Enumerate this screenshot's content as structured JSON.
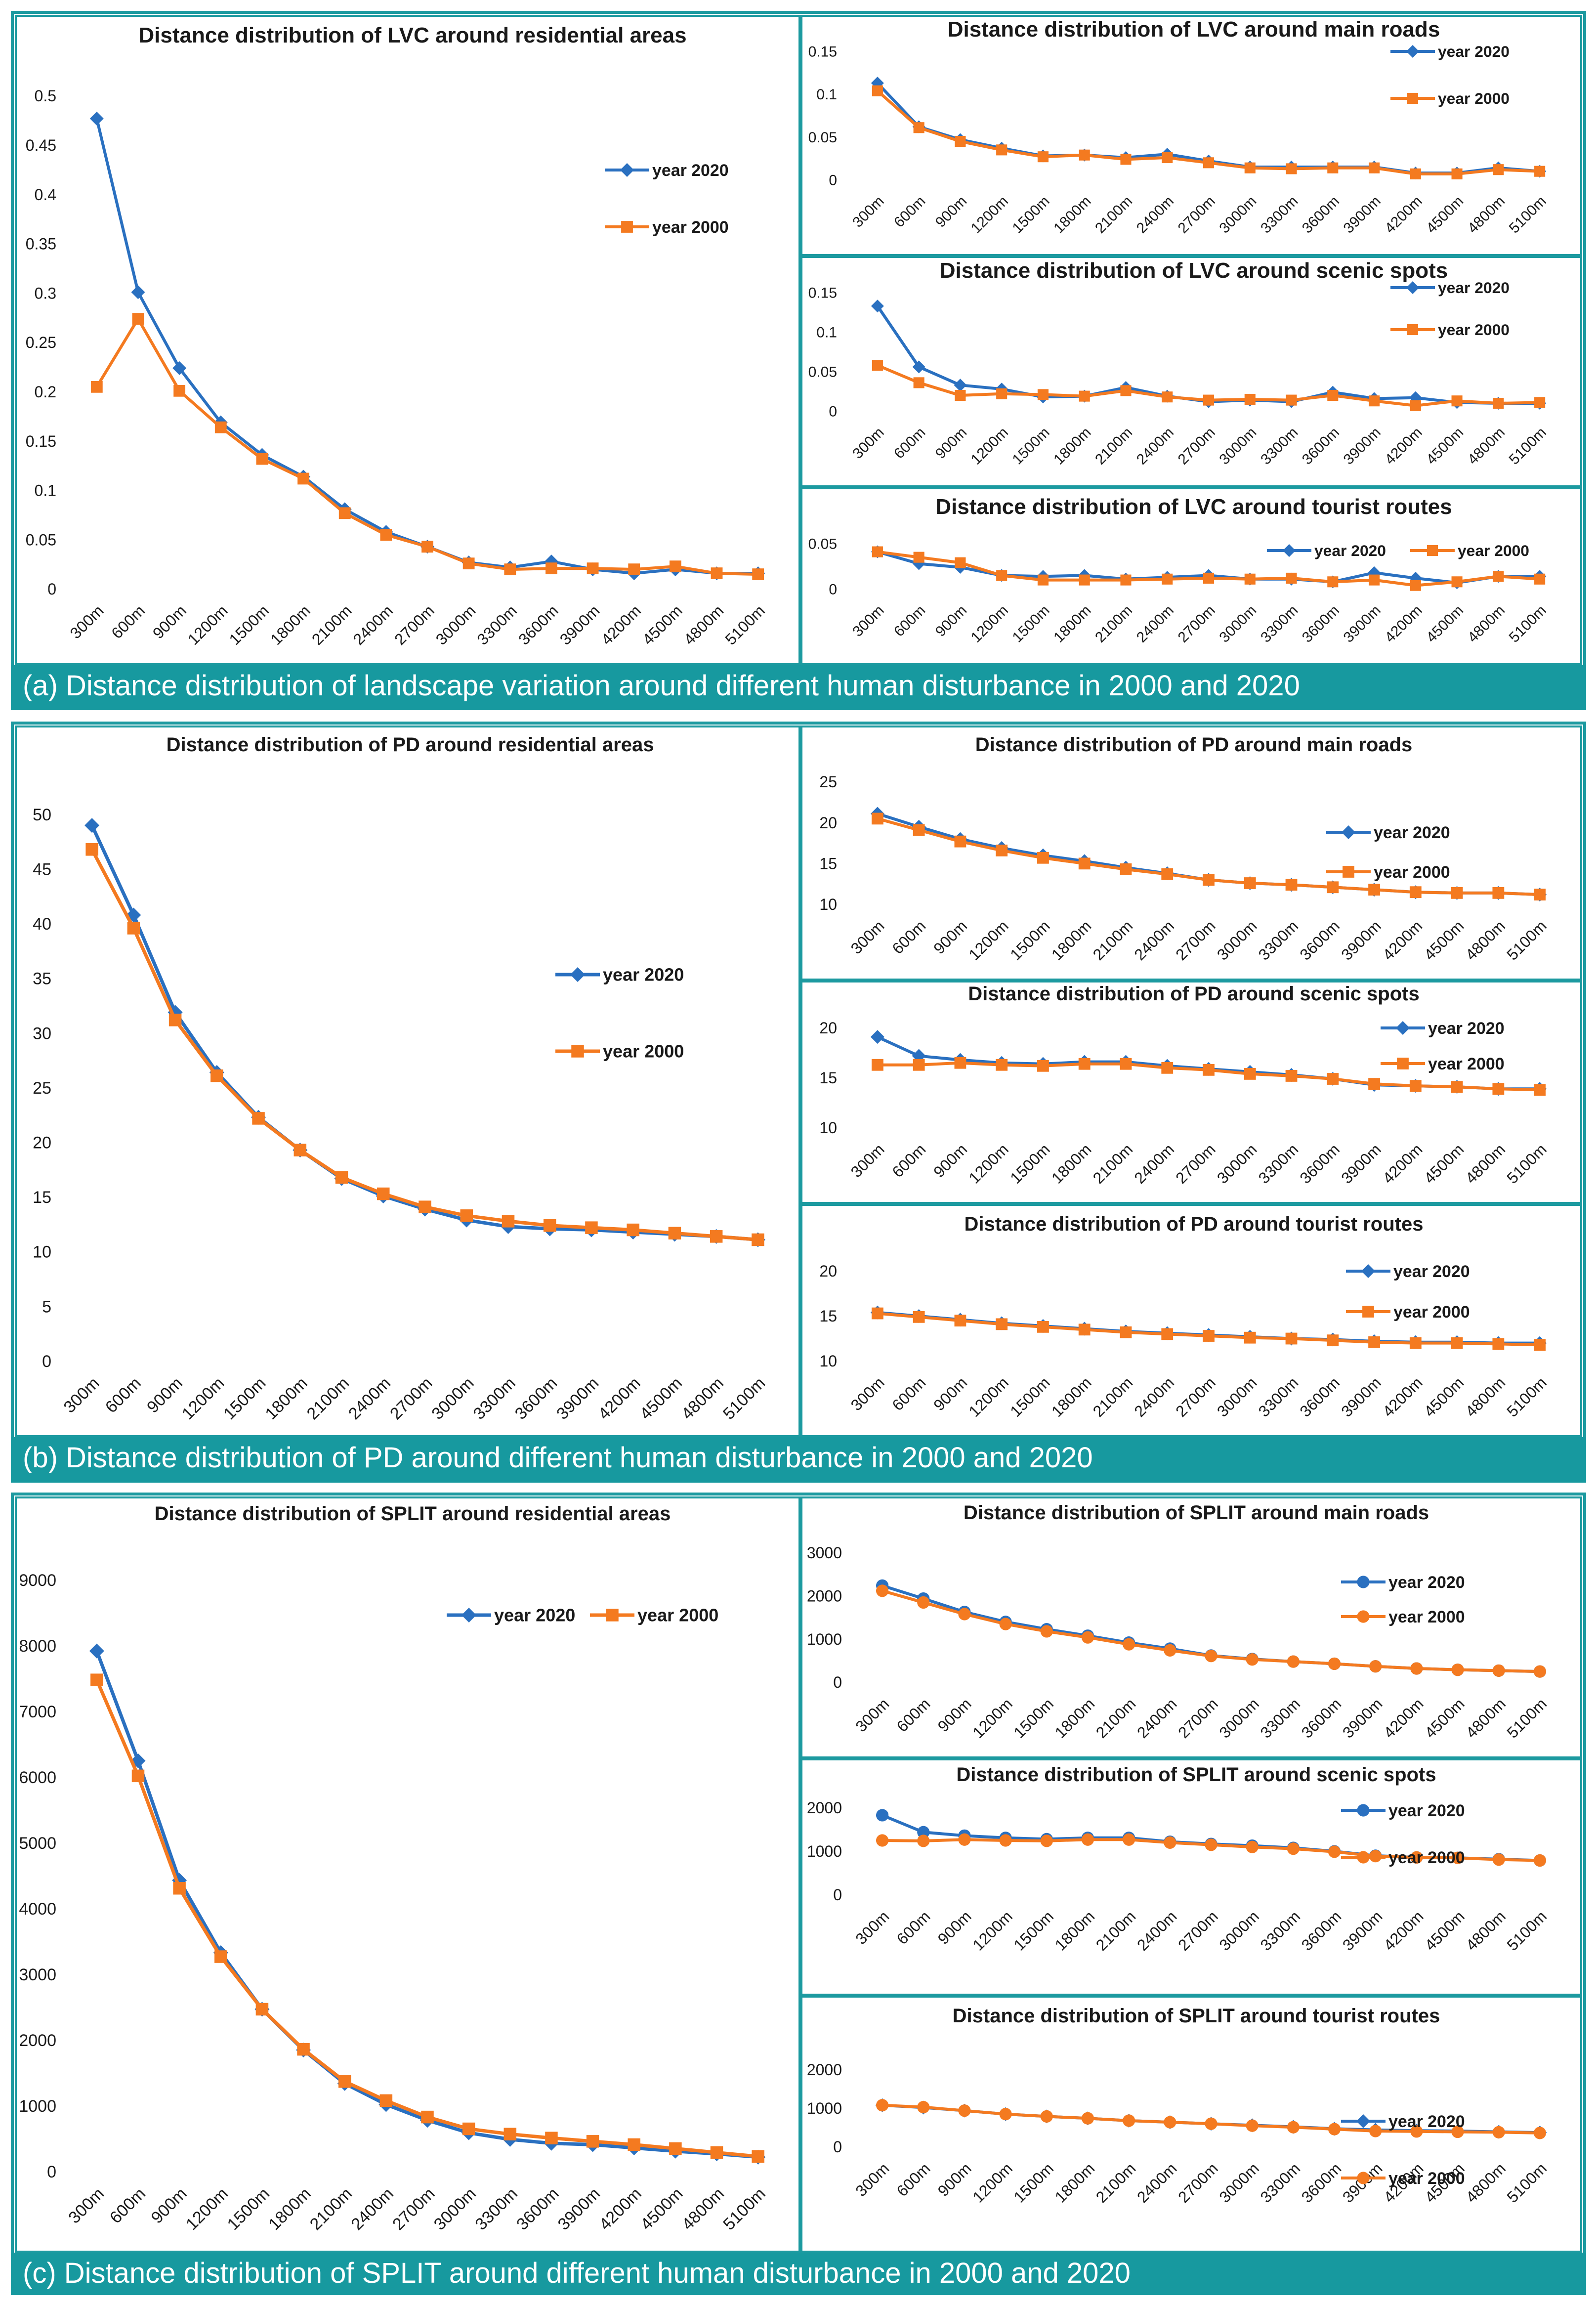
{
  "colors": {
    "series2020": "#2a70c0",
    "series2000": "#f47a20",
    "frame": "#1c9aa0",
    "caption_bg": "#17999f"
  },
  "captions": {
    "a": "(a) Distance distribution of landscape variation around different human disturbance in 2000 and 2020",
    "b": "(b) Distance distribution of PD around different human disturbance in 2000 and 2020",
    "c": "(c) Distance distribution of SPLIT around different human disturbance in 2000 and 2020"
  },
  "chart_data": [
    {
      "id": "lvc-res",
      "type": "line",
      "title": "Distance distribution of LVC around residential areas",
      "categories": [
        "300m",
        "600m",
        "900m",
        "1200m",
        "1500m",
        "1800m",
        "2100m",
        "2400m",
        "2700m",
        "3000m",
        "3300m",
        "3600m",
        "3900m",
        "4200m",
        "4500m",
        "4800m",
        "5100m"
      ],
      "ylim": [
        0,
        0.5
      ],
      "yticks": [
        "0",
        "0.05",
        "0.1",
        "0.15",
        "0.2",
        "0.25",
        "0.3",
        "0.35",
        "0.4",
        "0.45",
        "0.5"
      ],
      "legend": "right-stacked",
      "series": [
        {
          "name": "year 2020",
          "marker": "diamond",
          "values": [
            0.477,
            0.301,
            0.224,
            0.169,
            0.136,
            0.114,
            0.081,
            0.058,
            0.043,
            0.027,
            0.022,
            0.028,
            0.02,
            0.016,
            0.02,
            0.016,
            0.016
          ]
        },
        {
          "name": "year 2000",
          "marker": "square",
          "values": [
            0.205,
            0.274,
            0.201,
            0.164,
            0.132,
            0.112,
            0.077,
            0.055,
            0.043,
            0.026,
            0.02,
            0.021,
            0.021,
            0.02,
            0.023,
            0.016,
            0.015
          ]
        }
      ]
    },
    {
      "id": "lvc-roads",
      "type": "line",
      "title": "Distance distribution of LVC around main roads",
      "categories": [
        "300m",
        "600m",
        "900m",
        "1200m",
        "1500m",
        "1800m",
        "2100m",
        "2400m",
        "2700m",
        "3000m",
        "3300m",
        "3600m",
        "3900m",
        "4200m",
        "4500m",
        "4800m",
        "5100m"
      ],
      "ylim": [
        0,
        0.15
      ],
      "yticks": [
        "0",
        "0.05",
        "0.1",
        "0.15"
      ],
      "legend": "right-stacked",
      "series": [
        {
          "name": "year 2020",
          "marker": "diamond",
          "values": [
            0.113,
            0.062,
            0.047,
            0.037,
            0.028,
            0.029,
            0.026,
            0.03,
            0.022,
            0.015,
            0.015,
            0.015,
            0.015,
            0.008,
            0.008,
            0.014,
            0.01
          ]
        },
        {
          "name": "year 2000",
          "marker": "square",
          "values": [
            0.104,
            0.061,
            0.045,
            0.035,
            0.027,
            0.029,
            0.024,
            0.026,
            0.02,
            0.014,
            0.013,
            0.014,
            0.014,
            0.007,
            0.007,
            0.012,
            0.01
          ]
        }
      ]
    },
    {
      "id": "lvc-scenic",
      "type": "line",
      "title": "Distance distribution of LVC around scenic  spots",
      "categories": [
        "300m",
        "600m",
        "900m",
        "1200m",
        "1500m",
        "1800m",
        "2100m",
        "2400m",
        "2700m",
        "3000m",
        "3300m",
        "3600m",
        "3900m",
        "4200m",
        "4500m",
        "4800m",
        "5100m"
      ],
      "ylim": [
        0,
        0.15
      ],
      "yticks": [
        "0",
        "0.05",
        "0.1",
        "0.15"
      ],
      "legend": "right-stacked",
      "series": [
        {
          "name": "year 2020",
          "marker": "diamond",
          "values": [
            0.133,
            0.056,
            0.033,
            0.028,
            0.018,
            0.019,
            0.03,
            0.019,
            0.012,
            0.014,
            0.012,
            0.024,
            0.016,
            0.017,
            0.011,
            0.01,
            0.01
          ]
        },
        {
          "name": "year 2000",
          "marker": "square",
          "values": [
            0.058,
            0.036,
            0.02,
            0.022,
            0.021,
            0.019,
            0.026,
            0.018,
            0.014,
            0.015,
            0.014,
            0.02,
            0.013,
            0.007,
            0.013,
            0.01,
            0.011
          ]
        }
      ]
    },
    {
      "id": "lvc-tourist",
      "type": "line",
      "title": "Distance distribution of LVC around tourist routes",
      "categories": [
        "300m",
        "600m",
        "900m",
        "1200m",
        "1500m",
        "1800m",
        "2100m",
        "2400m",
        "2700m",
        "3000m",
        "3300m",
        "3600m",
        "3900m",
        "4200m",
        "4500m",
        "4800m",
        "5100m"
      ],
      "ylim": [
        0,
        0.05
      ],
      "yticks": [
        "0",
        "0.05"
      ],
      "legend": "top-row",
      "series": [
        {
          "name": "year 2020",
          "marker": "diamond",
          "values": [
            0.041,
            0.028,
            0.024,
            0.015,
            0.014,
            0.015,
            0.011,
            0.013,
            0.015,
            0.011,
            0.011,
            0.008,
            0.018,
            0.012,
            0.007,
            0.014,
            0.014
          ]
        },
        {
          "name": "year 2000",
          "marker": "square",
          "values": [
            0.041,
            0.035,
            0.029,
            0.015,
            0.01,
            0.01,
            0.01,
            0.011,
            0.012,
            0.011,
            0.012,
            0.008,
            0.01,
            0.004,
            0.008,
            0.014,
            0.011
          ]
        }
      ]
    },
    {
      "id": "pd-res",
      "type": "line",
      "title": "Distance distribution of PD around residential areas",
      "categories": [
        "300m",
        "600m",
        "900m",
        "1200m",
        "1500m",
        "1800m",
        "2100m",
        "2400m",
        "2700m",
        "3000m",
        "3300m",
        "3600m",
        "3900m",
        "4200m",
        "4500m",
        "4800m",
        "5100m"
      ],
      "ylim": [
        0,
        50
      ],
      "yticks": [
        "0",
        "5",
        "10",
        "15",
        "20",
        "25",
        "30",
        "35",
        "40",
        "45",
        "50"
      ],
      "legend": "right-stacked",
      "series": [
        {
          "name": "year 2020",
          "marker": "diamond",
          "values": [
            49.0,
            40.8,
            31.9,
            26.4,
            22.3,
            19.3,
            16.7,
            15.1,
            13.9,
            12.9,
            12.3,
            12.1,
            12.0,
            11.8,
            11.6,
            11.4,
            11.1
          ]
        },
        {
          "name": "year 2000",
          "marker": "square",
          "values": [
            46.8,
            39.6,
            31.2,
            26.1,
            22.2,
            19.3,
            16.8,
            15.3,
            14.1,
            13.3,
            12.8,
            12.4,
            12.2,
            12.0,
            11.7,
            11.4,
            11.1
          ]
        }
      ]
    },
    {
      "id": "pd-roads",
      "type": "line",
      "title": "Distance distribution of PD around main roads",
      "categories": [
        "300m",
        "600m",
        "900m",
        "1200m",
        "1500m",
        "1800m",
        "2100m",
        "2400m",
        "2700m",
        "3000m",
        "3300m",
        "3600m",
        "3900m",
        "4200m",
        "4500m",
        "4800m",
        "5100m"
      ],
      "ylim": [
        10,
        25
      ],
      "yticks": [
        "10",
        "15",
        "20",
        "25"
      ],
      "legend": "right-stacked",
      "series": [
        {
          "name": "year 2020",
          "marker": "diamond",
          "values": [
            21.1,
            19.5,
            18.0,
            16.9,
            16.0,
            15.3,
            14.5,
            13.8,
            13.0,
            12.6,
            12.4,
            12.1,
            11.8,
            11.5,
            11.4,
            11.4,
            11.2
          ]
        },
        {
          "name": "year 2000",
          "marker": "square",
          "values": [
            20.5,
            19.1,
            17.7,
            16.6,
            15.7,
            15.0,
            14.3,
            13.7,
            13.0,
            12.6,
            12.4,
            12.1,
            11.8,
            11.5,
            11.4,
            11.4,
            11.2
          ]
        }
      ]
    },
    {
      "id": "pd-scenic",
      "type": "line",
      "title": "Distance distribution of PD around scenic spots",
      "categories": [
        "300m",
        "600m",
        "900m",
        "1200m",
        "1500m",
        "1800m",
        "2100m",
        "2400m",
        "2700m",
        "3000m",
        "3300m",
        "3600m",
        "3900m",
        "4200m",
        "4500m",
        "4800m",
        "5100m"
      ],
      "ylim": [
        10,
        20
      ],
      "yticks": [
        "10",
        "15",
        "20"
      ],
      "legend": "right-stacked",
      "series": [
        {
          "name": "year 2020",
          "marker": "diamond",
          "values": [
            19.1,
            17.2,
            16.8,
            16.5,
            16.4,
            16.6,
            16.6,
            16.2,
            15.9,
            15.6,
            15.3,
            14.9,
            14.3,
            14.2,
            14.1,
            13.9,
            13.9
          ]
        },
        {
          "name": "year 2000",
          "marker": "square",
          "values": [
            16.3,
            16.3,
            16.5,
            16.3,
            16.2,
            16.4,
            16.4,
            16.0,
            15.8,
            15.4,
            15.2,
            14.9,
            14.4,
            14.2,
            14.1,
            13.9,
            13.8
          ]
        }
      ]
    },
    {
      "id": "pd-tourist",
      "type": "line",
      "title": "Distance distribution  of PD around tourist routes",
      "categories": [
        "300m",
        "600m",
        "900m",
        "1200m",
        "1500m",
        "1800m",
        "2100m",
        "2400m",
        "2700m",
        "3000m",
        "3300m",
        "3600m",
        "3900m",
        "4200m",
        "4500m",
        "4800m",
        "5100m"
      ],
      "ylim": [
        10,
        20
      ],
      "yticks": [
        "10",
        "15",
        "20"
      ],
      "legend": "right-stacked",
      "series": [
        {
          "name": "year 2020",
          "marker": "diamond",
          "values": [
            15.4,
            15.0,
            14.6,
            14.2,
            13.9,
            13.6,
            13.3,
            13.1,
            12.9,
            12.7,
            12.5,
            12.4,
            12.2,
            12.1,
            12.1,
            12.0,
            12.0
          ]
        },
        {
          "name": "year 2000",
          "marker": "square",
          "values": [
            15.3,
            14.9,
            14.5,
            14.1,
            13.8,
            13.5,
            13.2,
            13.0,
            12.8,
            12.6,
            12.5,
            12.3,
            12.1,
            12.0,
            12.0,
            11.9,
            11.8
          ]
        }
      ]
    },
    {
      "id": "split-res",
      "type": "line",
      "title": "Distance distribution of SPLIT around residential areas",
      "categories": [
        "300m",
        "600m",
        "900m",
        "1200m",
        "1500m",
        "1800m",
        "2100m",
        "2400m",
        "2700m",
        "3000m",
        "3300m",
        "3600m",
        "3900m",
        "4200m",
        "4500m",
        "4800m",
        "5100m"
      ],
      "ylim": [
        0,
        9000
      ],
      "yticks": [
        "0",
        "1000",
        "2000",
        "3000",
        "4000",
        "5000",
        "6000",
        "7000",
        "8000",
        "9000"
      ],
      "legend": "top-row",
      "series": [
        {
          "name": "year 2020",
          "marker": "diamond",
          "values": [
            7920,
            6250,
            4430,
            3330,
            2470,
            1850,
            1340,
            1020,
            780,
            590,
            490,
            430,
            410,
            360,
            310,
            270,
            220
          ]
        },
        {
          "name": "year 2000",
          "marker": "square",
          "values": [
            7480,
            6020,
            4310,
            3270,
            2470,
            1860,
            1370,
            1080,
            830,
            650,
            570,
            510,
            460,
            410,
            350,
            290,
            230
          ]
        }
      ]
    },
    {
      "id": "split-roads",
      "type": "line",
      "title": "Distance distribution of SPLIT around main roads",
      "categories": [
        "300m",
        "600m",
        "900m",
        "1200m",
        "1500m",
        "1800m",
        "2100m",
        "2400m",
        "2700m",
        "3000m",
        "3300m",
        "3600m",
        "3900m",
        "4200m",
        "4500m",
        "4800m",
        "5100m"
      ],
      "ylim": [
        0,
        3000
      ],
      "yticks": [
        "0",
        "1000",
        "2000",
        "3000"
      ],
      "legend": "right-stacked",
      "series": [
        {
          "name": "year 2020",
          "marker": "circle",
          "values": [
            2240,
            1940,
            1630,
            1400,
            1230,
            1080,
            920,
            780,
            620,
            540,
            480,
            430,
            370,
            320,
            290,
            270,
            250
          ]
        },
        {
          "name": "year 2000",
          "marker": "circle",
          "values": [
            2120,
            1850,
            1580,
            1350,
            1180,
            1040,
            880,
            740,
            610,
            530,
            480,
            430,
            370,
            320,
            290,
            270,
            250
          ]
        }
      ]
    },
    {
      "id": "split-scenic",
      "type": "line",
      "title": "Distance distribution of SPLIT around scenic spots",
      "categories": [
        "300m",
        "600m",
        "900m",
        "1200m",
        "1500m",
        "1800m",
        "2100m",
        "2400m",
        "2700m",
        "3000m",
        "3300m",
        "3600m",
        "3900m",
        "4200m",
        "4500m",
        "4800m",
        "5100m"
      ],
      "ylim": [
        0,
        2000
      ],
      "yticks": [
        "0",
        "1000",
        "2000"
      ],
      "legend": "right-stacked",
      "series": [
        {
          "name": "year 2020",
          "marker": "circle",
          "values": [
            1830,
            1440,
            1360,
            1310,
            1280,
            1310,
            1310,
            1220,
            1170,
            1130,
            1080,
            1000,
            900,
            860,
            850,
            820,
            790
          ]
        },
        {
          "name": "year 2000",
          "marker": "circle",
          "values": [
            1250,
            1240,
            1270,
            1250,
            1240,
            1270,
            1270,
            1200,
            1150,
            1100,
            1060,
            990,
            890,
            860,
            850,
            810,
            790
          ]
        }
      ]
    },
    {
      "id": "split-tourist",
      "type": "line",
      "title": "Distance distribution of SPLIT around tourist routes",
      "categories": [
        "300m",
        "600m",
        "900m",
        "1200m",
        "1500m",
        "1800m",
        "2100m",
        "2400m",
        "2700m",
        "3000m",
        "3300m",
        "3600m",
        "3900m",
        "4200m",
        "4500m",
        "4800m",
        "5100m"
      ],
      "ylim": [
        0,
        2000
      ],
      "yticks": [
        "0",
        "1000",
        "2000"
      ],
      "legend": "right-stacked",
      "series": [
        {
          "name": "year 2020",
          "marker": "diamond",
          "values": [
            1080,
            1020,
            940,
            850,
            790,
            740,
            680,
            640,
            600,
            560,
            520,
            470,
            440,
            420,
            410,
            390,
            370
          ]
        },
        {
          "name": "year 2000",
          "marker": "circle",
          "values": [
            1080,
            1030,
            940,
            850,
            790,
            740,
            680,
            640,
            600,
            550,
            510,
            460,
            410,
            400,
            390,
            380,
            360
          ]
        }
      ]
    }
  ]
}
